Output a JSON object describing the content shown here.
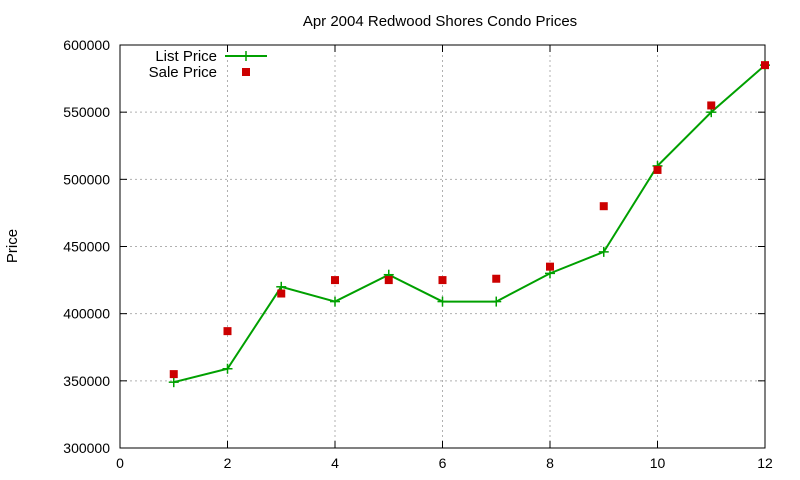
{
  "chart_data": {
    "type": "line",
    "title": "Apr 2004 Redwood Shores Condo Prices",
    "xlabel": "",
    "ylabel": "Price",
    "xlim": [
      0,
      12
    ],
    "ylim": [
      300000,
      600000
    ],
    "xticks": [
      0,
      2,
      4,
      6,
      8,
      10,
      12
    ],
    "yticks": [
      300000,
      350000,
      400000,
      450000,
      500000,
      550000,
      600000
    ],
    "grid": true,
    "legend_position": "top-left",
    "series": [
      {
        "name": "List Price",
        "style": "line-with-plus-markers",
        "color": "#00a000",
        "x": [
          1,
          2,
          3,
          4,
          5,
          6,
          7,
          8,
          9,
          10,
          11,
          12
        ],
        "y": [
          349000,
          359000,
          420000,
          409000,
          429000,
          409000,
          409000,
          430000,
          446000,
          510000,
          550000,
          585000
        ]
      },
      {
        "name": "Sale Price",
        "style": "square-markers",
        "color": "#cc0000",
        "x": [
          1,
          2,
          3,
          4,
          5,
          6,
          7,
          8,
          9,
          10,
          11,
          12
        ],
        "y": [
          355000,
          387000,
          415000,
          425000,
          425000,
          425000,
          426000,
          435000,
          480000,
          507000,
          555000,
          585000
        ]
      }
    ]
  }
}
